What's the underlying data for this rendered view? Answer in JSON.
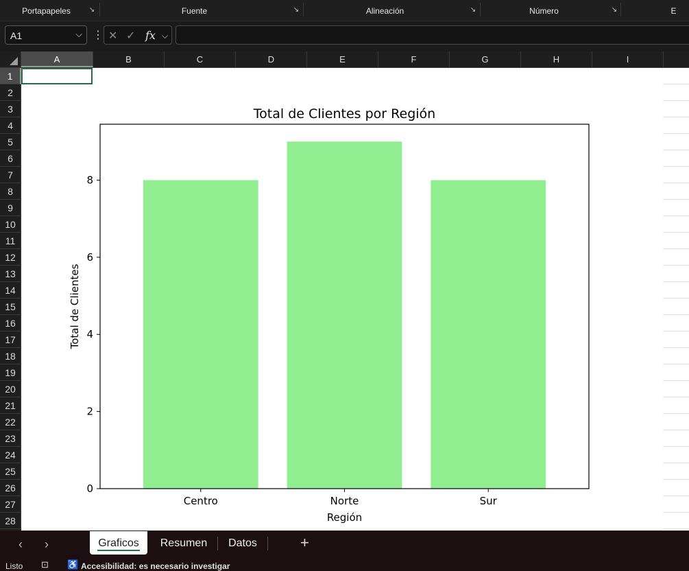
{
  "ribbon": {
    "groups": [
      {
        "label": "Portapapeles"
      },
      {
        "label": "Fuente"
      },
      {
        "label": "Alineación"
      },
      {
        "label": "Número"
      },
      {
        "label": "E"
      }
    ]
  },
  "formula_bar": {
    "name_box": "A1",
    "fx_label": "fx",
    "formula": ""
  },
  "grid": {
    "columns": [
      "A",
      "B",
      "C",
      "D",
      "E",
      "F",
      "G",
      "H",
      "I"
    ],
    "rows": [
      "1",
      "2",
      "3",
      "4",
      "5",
      "6",
      "7",
      "8",
      "9",
      "10",
      "11",
      "12",
      "13",
      "14",
      "15",
      "16",
      "17",
      "18",
      "19",
      "20",
      "21",
      "22",
      "23",
      "24",
      "25",
      "26",
      "27",
      "28"
    ],
    "selected_cell": "A1"
  },
  "chart_data": {
    "type": "bar",
    "title": "Total de Clientes por Región",
    "xlabel": "Región",
    "ylabel": "Total de Clientes",
    "categories": [
      "Centro",
      "Norte",
      "Sur"
    ],
    "values": [
      8,
      9,
      8
    ],
    "ylim": [
      0,
      9.45
    ],
    "yticks": [
      "0",
      "2",
      "4",
      "6",
      "8"
    ],
    "bar_color": "#90ee90",
    "grid": false,
    "legend": "none"
  },
  "sheets": {
    "tabs": [
      {
        "label": "Graficos",
        "active": true
      },
      {
        "label": "Resumen",
        "active": false
      },
      {
        "label": "Datos",
        "active": false
      }
    ],
    "add_label": "+"
  },
  "status": {
    "ready": "Listo",
    "accessibility": "Accesibilidad: es necesario investigar"
  }
}
